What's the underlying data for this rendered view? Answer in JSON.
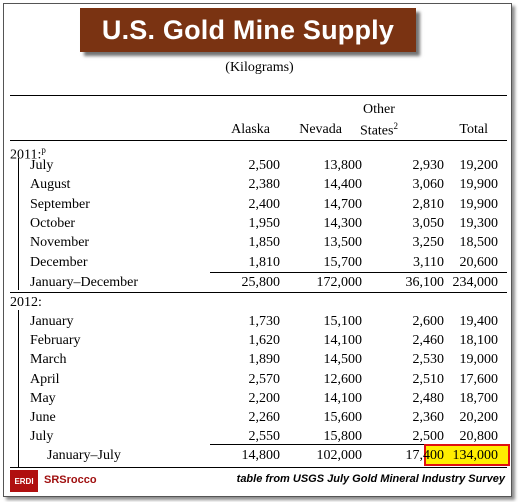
{
  "banner": {
    "title": "U.S. Gold Mine Supply"
  },
  "subtitle": "(Kilograms)",
  "headers": {
    "alaska": "Alaska",
    "nevada": "Nevada",
    "other_line1": "Other",
    "other_line2": "States",
    "other_sup": "2",
    "total": "Total"
  },
  "section_2011": {
    "label": "2011:",
    "sup": "p"
  },
  "rows_2011": [
    {
      "month": "July",
      "alaska": "2,500",
      "nevada": "13,800",
      "other": "2,930",
      "total": "19,200"
    },
    {
      "month": "August",
      "alaska": "2,380",
      "nevada": "14,400",
      "other": "3,060",
      "total": "19,900"
    },
    {
      "month": "September",
      "alaska": "2,400",
      "nevada": "14,700",
      "other": "2,810",
      "total": "19,900"
    },
    {
      "month": "October",
      "alaska": "1,950",
      "nevada": "14,300",
      "other": "3,050",
      "total": "19,300"
    },
    {
      "month": "November",
      "alaska": "1,850",
      "nevada": "13,500",
      "other": "3,250",
      "total": "18,500"
    },
    {
      "month": "December",
      "alaska": "1,810",
      "nevada": "15,700",
      "other": "3,110",
      "total": "20,600"
    }
  ],
  "total_2011": {
    "month": "January–December",
    "alaska": "25,800",
    "nevada": "172,000",
    "other": "36,100",
    "total": "234,000"
  },
  "section_2012": {
    "label": "2012:"
  },
  "rows_2012": [
    {
      "month": "January",
      "alaska": "1,730",
      "nevada": "15,100",
      "other": "2,600",
      "total": "19,400"
    },
    {
      "month": "February",
      "alaska": "1,620",
      "nevada": "14,100",
      "other": "2,460",
      "total": "18,100"
    },
    {
      "month": "March",
      "alaska": "1,890",
      "nevada": "14,500",
      "other": "2,530",
      "total": "19,000"
    },
    {
      "month": "April",
      "alaska": "2,570",
      "nevada": "12,600",
      "other": "2,510",
      "total": "17,600"
    },
    {
      "month": "May",
      "alaska": "2,200",
      "nevada": "14,100",
      "other": "2,480",
      "total": "18,700"
    },
    {
      "month": "June",
      "alaska": "2,260",
      "nevada": "15,600",
      "other": "2,360",
      "total": "20,200"
    },
    {
      "month": "July",
      "alaska": "2,550",
      "nevada": "15,800",
      "other": "2,500",
      "total": "20,800"
    }
  ],
  "total_2012": {
    "month": "January–July",
    "alaska": "14,800",
    "nevada": "102,000",
    "other": "17,400",
    "total": "134,000"
  },
  "footer": {
    "logo_text": "ERDI",
    "brand": "SRSrocco",
    "source": "table from USGS July Gold Mineral Industry Survey"
  },
  "colors": {
    "banner": "#7a3312",
    "highlight_fill": "#ffee00",
    "highlight_border": "#e01010"
  }
}
